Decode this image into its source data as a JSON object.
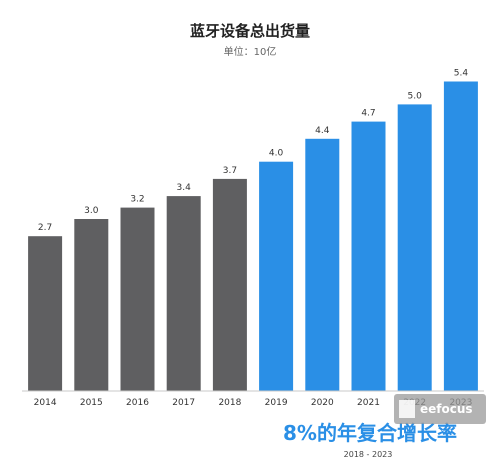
{
  "chart_data": {
    "type": "bar",
    "title": "蓝牙设备总出货量",
    "subtitle": "单位：10亿",
    "categories": [
      "2014",
      "2015",
      "2016",
      "2017",
      "2018",
      "2019",
      "2020",
      "2021",
      "2022",
      "2023"
    ],
    "values": [
      2.7,
      3.0,
      3.2,
      3.4,
      3.7,
      4.0,
      4.4,
      4.7,
      5.0,
      5.4
    ],
    "value_labels": [
      "2.7",
      "3.0",
      "3.2",
      "3.4",
      "3.7",
      "4.0",
      "4.4",
      "4.7",
      "5.0",
      "5.4"
    ],
    "highlight_from": "2019",
    "ylim": [
      0,
      5.6
    ],
    "grid": false,
    "annotation": {
      "text": "8%的年复合增长率",
      "range_label": "2018 - 2023"
    },
    "watermark": "eefocus"
  },
  "colors": {
    "historical": "#5f5f61",
    "forecast": "#2a8fe6",
    "axis": "#c8c8c8"
  }
}
